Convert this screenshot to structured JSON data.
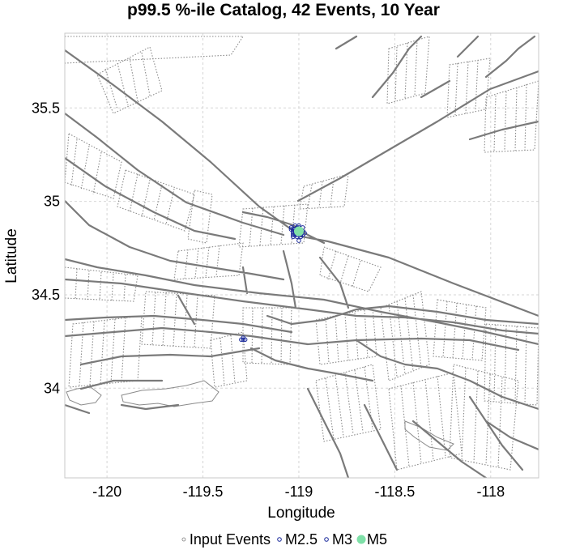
{
  "chart_data": {
    "type": "scatter",
    "title": "p99.5 %-ile Catalog, 42 Events, 10 Year",
    "xlabel": "Longitude",
    "ylabel": "Latitude",
    "xlim": [
      -120.22,
      -117.75
    ],
    "ylim": [
      33.52,
      35.9
    ],
    "xticks": [
      -120,
      -119.5,
      -119,
      -118.5,
      -118
    ],
    "xtick_labels": [
      "-120",
      "-119.5",
      "-119",
      "-118.5",
      "-118"
    ],
    "yticks": [
      34,
      34.5,
      35,
      35.5
    ],
    "ytick_labels": [
      "34",
      "34.5",
      "35",
      "35.5"
    ],
    "grid": true,
    "legend_position": "bottom",
    "series": [
      {
        "name": "Input Events",
        "color": "#808080",
        "marker": "open-circle-small",
        "x": [],
        "y": []
      },
      {
        "name": "M2.5",
        "color": "#1a2a9c",
        "marker": "open-circle",
        "x": [
          -119.03,
          -119.01,
          -119.0,
          -118.99,
          -119.02,
          -119.04,
          -119.0,
          -118.98,
          -119.01,
          -119.03,
          -119.02,
          -118.99,
          -119.0,
          -119.04,
          -119.01,
          -118.97,
          -119.02,
          -119.0,
          -119.03,
          -118.98,
          -119.01,
          -119.0,
          -119.02,
          -118.99,
          -119.01,
          -119.03,
          -119.0,
          -118.98,
          -119.02,
          -119.01,
          -119.03,
          -119.0,
          -118.99,
          -119.01,
          -119.0,
          -119.3,
          -119.28,
          -119.29
        ],
        "y": [
          34.84,
          34.86,
          34.83,
          34.85,
          34.82,
          34.86,
          34.87,
          34.84,
          34.81,
          34.83,
          34.85,
          34.82,
          34.79,
          34.85,
          34.84,
          34.83,
          34.87,
          34.85,
          34.81,
          34.86,
          34.82,
          34.84,
          34.83,
          34.81,
          34.86,
          34.85,
          34.83,
          34.82,
          34.84,
          34.85,
          34.82,
          34.86,
          34.84,
          34.83,
          34.85,
          34.26,
          34.26,
          34.27
        ]
      },
      {
        "name": "M3",
        "color": "#1a2a9c",
        "marker": "open-circle",
        "x": [
          -119.02,
          -119.0,
          -119.29
        ],
        "y": [
          34.84,
          34.85,
          34.26
        ]
      },
      {
        "name": "M5",
        "color": "#7fe0a8",
        "marker": "filled-circle",
        "x": [
          -119.0
        ],
        "y": [
          34.84
        ]
      }
    ]
  }
}
